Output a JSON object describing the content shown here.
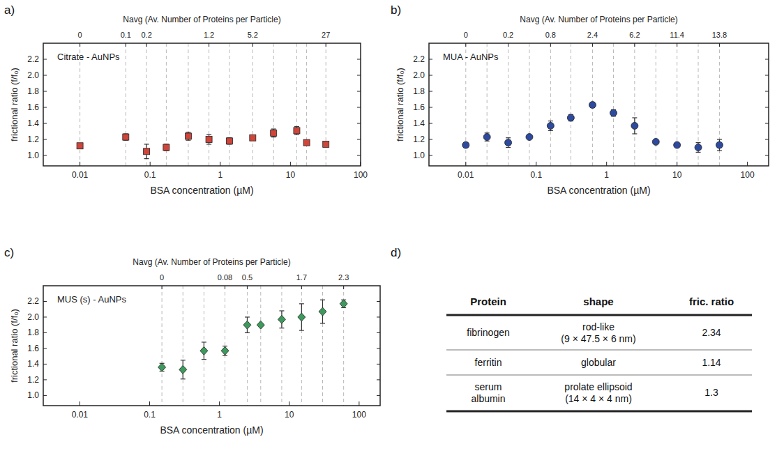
{
  "chart_data": [
    {
      "type": "scatter",
      "panel": "a)",
      "title": "Citrate - AuNPs",
      "xlabel": "BSA concentration (µM)",
      "ylabel": "frictional ratio (f/f₀)",
      "x2label": "Navg (Av. Number of Proteins per Particle)",
      "log": "x",
      "grid": false,
      "color": "#d0453a",
      "marker": "square",
      "xlim": [
        0.003,
        100
      ],
      "xticks": [
        0.01,
        0.1,
        1,
        10,
        100
      ],
      "ylim": [
        0.87,
        2.4
      ],
      "yticks": [
        {
          "value": 1,
          "label": "1.0"
        },
        1.2,
        1.4,
        1.6,
        1.8,
        {
          "value": 2,
          "label": "2.0"
        },
        2.2
      ],
      "x2ticks": [
        {
          "value": 0.01,
          "label": "0"
        },
        {
          "value": 0.045,
          "label": "0.1"
        },
        {
          "value": 0.089,
          "label": "0.2"
        },
        {
          "value": 0.69,
          "label": "1.2"
        },
        {
          "value": 2.9,
          "label": "5.2"
        },
        {
          "value": 32,
          "label": "27"
        }
      ],
      "x": [
        0.01,
        0.045,
        0.089,
        0.17,
        0.35,
        0.69,
        1.35,
        2.9,
        5.75,
        12.3,
        17,
        32
      ],
      "values": [
        1.12,
        1.23,
        1.05,
        1.1,
        1.24,
        1.2,
        1.18,
        1.22,
        1.28,
        1.31,
        1.16,
        1.14
      ],
      "errors": [
        0.03,
        0.04,
        0.09,
        0.04,
        0.05,
        0.06,
        0.04,
        0.03,
        0.05,
        0.05,
        0.01,
        0.01
      ]
    },
    {
      "type": "scatter",
      "panel": "b)",
      "title": "MUA - AuNPs",
      "xlabel": "BSA concentration (µM)",
      "ylabel": "frictional ratio (f/f₀)",
      "x2label": "Navg (Av. Number of Proteins per Particle)",
      "log": "x",
      "grid": false,
      "color": "#2d4a9e",
      "marker": "circle",
      "xlim": [
        0.003,
        200
      ],
      "xticks": [
        0.01,
        0.1,
        1,
        10,
        100
      ],
      "ylim": [
        0.87,
        2.4
      ],
      "yticks": [
        {
          "value": 1,
          "label": "1.0"
        },
        1.2,
        1.4,
        1.6,
        1.8,
        {
          "value": 2,
          "label": "2.0"
        },
        2.2
      ],
      "x2ticks": [
        {
          "value": 0.01,
          "label": "0"
        },
        {
          "value": 0.04,
          "label": "0.2"
        },
        {
          "value": 0.16,
          "label": "0.8"
        },
        {
          "value": 0.63,
          "label": "2.4"
        },
        {
          "value": 2.5,
          "label": "6.2"
        },
        {
          "value": 10,
          "label": "11.4"
        },
        {
          "value": 40,
          "label": "13.8"
        }
      ],
      "x": [
        0.01,
        0.02,
        0.04,
        0.08,
        0.16,
        0.31,
        0.63,
        1.25,
        2.5,
        5,
        10,
        20,
        40
      ],
      "values": [
        1.13,
        1.23,
        1.16,
        1.23,
        1.37,
        1.47,
        1.63,
        1.53,
        1.37,
        1.17,
        1.13,
        1.1,
        1.13
      ],
      "errors": [
        0.03,
        0.05,
        0.06,
        0.01,
        0.06,
        0.04,
        0.03,
        0.04,
        0.1,
        0.01,
        0.01,
        0.06,
        0.07
      ]
    },
    {
      "type": "scatter",
      "panel": "c)",
      "title": "MUS (s) - AuNPs",
      "xlabel": "BSA concentration (µM)",
      "ylabel": "frictional ratio (f/f₀)",
      "x2label": "Navg (Av. Number of Proteins per Particle)",
      "log": "x",
      "grid": false,
      "color": "#3d9a5c",
      "marker": "diamond",
      "xlim": [
        0.003,
        200
      ],
      "xticks": [
        0.01,
        0.1,
        1,
        10,
        100
      ],
      "ylim": [
        0.87,
        2.4
      ],
      "yticks": [
        {
          "value": 1,
          "label": "1.0"
        },
        1.2,
        1.4,
        1.6,
        1.8,
        {
          "value": 2,
          "label": "2.0"
        },
        2.2
      ],
      "x2ticks": [
        {
          "value": 0.15,
          "label": "0"
        },
        {
          "value": 1.2,
          "label": "0.08"
        },
        {
          "value": 2.5,
          "label": "0.5"
        },
        {
          "value": 15,
          "label": "1.7"
        },
        {
          "value": 60,
          "label": "2.3"
        }
      ],
      "x": [
        0.15,
        0.3,
        0.6,
        1.2,
        2.5,
        3.9,
        7.8,
        15,
        30,
        60
      ],
      "values": [
        1.36,
        1.33,
        1.57,
        1.57,
        1.9,
        1.9,
        1.97,
        2.0,
        2.07,
        2.17
      ],
      "errors": [
        0.05,
        0.12,
        0.11,
        0.06,
        0.1,
        0.01,
        0.11,
        0.17,
        0.15,
        0.05
      ]
    }
  ],
  "table": {
    "panel": "d)",
    "header": [
      "Protein",
      "shape",
      "fric. ratio"
    ],
    "rows": [
      [
        [
          "fibrinogen"
        ],
        [
          "rod-like",
          "(9 × 47.5 × 6 nm)"
        ],
        [
          "2.34"
        ]
      ],
      [
        [
          "ferritin"
        ],
        [
          "globular"
        ],
        [
          "1.14"
        ]
      ],
      [
        [
          "serum",
          "albumin"
        ],
        [
          "prolate ellipsoid",
          "(14 × 4 × 4 nm)"
        ],
        [
          "1.3"
        ]
      ]
    ]
  }
}
